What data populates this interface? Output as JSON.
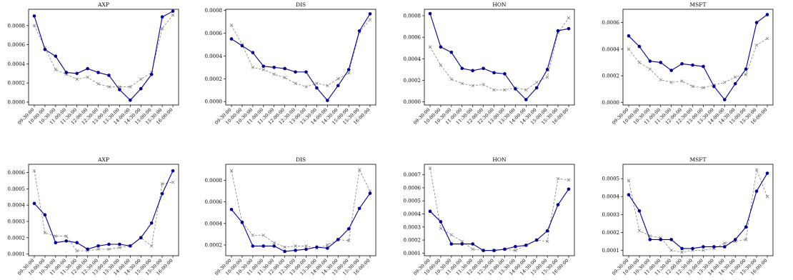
{
  "chart_data": [
    {
      "type": "line",
      "title": "AXP",
      "categories": [
        "09:30:00",
        "10:00:00",
        "10:30:00",
        "11:00:00",
        "11:30:00",
        "12:00:00",
        "12:30:00",
        "13:00:00",
        "13:30:00",
        "14:00:00",
        "14:30:00",
        "15:00:00",
        "15:30:00",
        "16:00:00"
      ],
      "ylim": [
        -3e-05,
        0.00097
      ],
      "yticks": [
        "0.0000",
        "0.0002",
        "0.0004",
        "0.0006",
        "0.0008"
      ],
      "ytick_values": [
        0,
        0.0002,
        0.0004,
        0.0006,
        0.0008
      ],
      "series": [
        {
          "style": "solid-circle",
          "color": "#00008b",
          "values": [
            0.0009,
            0.00055,
            0.00048,
            0.00031,
            0.0003,
            0.00035,
            0.00031,
            0.00028,
            0.00013,
            2e-05,
            0.00014,
            0.00029,
            0.00089,
            0.00095
          ]
        },
        {
          "style": "dashed-x",
          "color": "#808080",
          "values": [
            0.0008,
            0.00057,
            0.00034,
            0.00029,
            0.00024,
            0.00026,
            0.00019,
            0.00016,
            0.00016,
            0.00016,
            0.00024,
            0.00031,
            0.00077,
            0.00091
          ]
        }
      ]
    },
    {
      "type": "line",
      "title": "DIS",
      "categories": [
        "09:30:00",
        "10:00:00",
        "10:30:00",
        "11:00:00",
        "11:30:00",
        "12:00:00",
        "12:30:00",
        "13:00:00",
        "13:30:00",
        "14:00:00",
        "14:30:00",
        "15:00:00",
        "15:30:00",
        "16:00:00"
      ],
      "ylim": [
        -3e-05,
        0.00081
      ],
      "yticks": [
        "0.0000",
        "0.0002",
        "0.0004",
        "0.0006",
        "0.0008"
      ],
      "ytick_values": [
        0,
        0.0002,
        0.0004,
        0.0006,
        0.0008
      ],
      "series": [
        {
          "style": "solid-circle",
          "color": "#00008b",
          "values": [
            0.00055,
            0.00049,
            0.00043,
            0.00031,
            0.0003,
            0.00029,
            0.00026,
            0.00026,
            0.00012,
            1e-05,
            0.00014,
            0.00028,
            0.00062,
            0.00077
          ]
        },
        {
          "style": "dashed-x",
          "color": "#808080",
          "values": [
            0.00067,
            0.0005,
            0.0003,
            0.00028,
            0.00024,
            0.00021,
            0.00016,
            0.00013,
            0.00016,
            0.00014,
            0.0002,
            0.00025,
            0.00061,
            0.00072
          ]
        }
      ]
    },
    {
      "type": "line",
      "title": "HON",
      "categories": [
        "09:30:00",
        "10:00:00",
        "10:30:00",
        "11:00:00",
        "11:30:00",
        "12:00:00",
        "12:30:00",
        "13:00:00",
        "13:30:00",
        "14:00:00",
        "14:30:00",
        "15:00:00",
        "15:30:00",
        "16:00:00"
      ],
      "ylim": [
        -3e-05,
        0.00086
      ],
      "yticks": [
        "0.0000",
        "0.0002",
        "0.0004",
        "0.0006",
        "0.0008"
      ],
      "ytick_values": [
        0,
        0.0002,
        0.0004,
        0.0006,
        0.0008
      ],
      "series": [
        {
          "style": "solid-circle",
          "color": "#00008b",
          "values": [
            0.00082,
            0.00051,
            0.00046,
            0.00031,
            0.00029,
            0.00031,
            0.00027,
            0.00026,
            0.00012,
            2e-05,
            0.00013,
            0.0003,
            0.00066,
            0.00068
          ]
        },
        {
          "style": "dashed-x",
          "color": "#808080",
          "values": [
            0.00051,
            0.00034,
            0.00021,
            0.00017,
            0.00015,
            0.00016,
            0.00011,
            0.00011,
            0.00013,
            0.00011,
            0.00018,
            0.00023,
            0.00064,
            0.00078
          ]
        }
      ]
    },
    {
      "type": "line",
      "title": "MSFT",
      "categories": [
        "09:30:00",
        "10:00:00",
        "10:30:00",
        "11:00:00",
        "11:30:00",
        "12:00:00",
        "12:30:00",
        "13:00:00",
        "13:30:00",
        "14:00:00",
        "14:30:00",
        "15:00:00",
        "15:30:00",
        "16:00:00"
      ],
      "ylim": [
        -2e-05,
        0.0007
      ],
      "yticks": [
        "0.0000",
        "0.0002",
        "0.0004",
        "0.0006"
      ],
      "ytick_values": [
        0,
        0.0002,
        0.0004,
        0.0006
      ],
      "series": [
        {
          "style": "solid-circle",
          "color": "#00008b",
          "values": [
            0.0005,
            0.00042,
            0.00031,
            0.0003,
            0.00024,
            0.00029,
            0.00028,
            0.00027,
            0.00012,
            2e-05,
            0.00014,
            0.00025,
            0.0006,
            0.00066
          ]
        },
        {
          "style": "dashed-x",
          "color": "#808080",
          "values": [
            0.0004,
            0.0003,
            0.00025,
            0.00017,
            0.00015,
            0.00016,
            0.00012,
            0.00011,
            0.00013,
            0.00015,
            0.00019,
            0.00021,
            0.00043,
            0.00048
          ]
        }
      ]
    },
    {
      "type": "line",
      "title": "AXP",
      "categories": [
        "09:30:00",
        "10:00:00",
        "10:30:00",
        "11:00:00",
        "11:30:00",
        "12:00:00",
        "12:30:00",
        "13:00:00",
        "13:30:00",
        "14:00:00",
        "14:30:00",
        "15:00:00",
        "15:30:00",
        "16:00:00"
      ],
      "ylim": [
        9e-05,
        0.00065
      ],
      "yticks": [
        "0.0001",
        "0.0002",
        "0.0003",
        "0.0004",
        "0.0005",
        "0.0006"
      ],
      "ytick_values": [
        0.0001,
        0.0002,
        0.0003,
        0.0004,
        0.0005,
        0.0006
      ],
      "series": [
        {
          "style": "solid-circle",
          "color": "#00008b",
          "values": [
            0.00041,
            0.00034,
            0.00017,
            0.00018,
            0.00017,
            0.00013,
            0.00015,
            0.00016,
            0.00016,
            0.00015,
            0.0002,
            0.00029,
            0.00047,
            0.00061
          ]
        },
        {
          "style": "dashed-x",
          "color": "#808080",
          "values": [
            0.00061,
            0.00023,
            0.00021,
            0.00021,
            0.00012,
            0.00012,
            0.00013,
            0.00013,
            0.00014,
            0.00015,
            0.0002,
            0.00015,
            0.00053,
            0.00054
          ]
        }
      ]
    },
    {
      "type": "line",
      "title": "DIS",
      "categories": [
        "09:30:00",
        "10:00:00",
        "10:30:00",
        "11:00:00",
        "11:30:00",
        "12:00:00",
        "12:30:00",
        "13:00:00",
        "13:30:00",
        "14:00:00",
        "14:30:00",
        "15:00:00",
        "15:30:00",
        "16:00:00"
      ],
      "ylim": [
        0.0001,
        0.00095
      ],
      "yticks": [
        "0.0002",
        "0.0004",
        "0.0006",
        "0.0008"
      ],
      "ytick_values": [
        0.0002,
        0.0004,
        0.0006,
        0.0008
      ],
      "series": [
        {
          "style": "solid-circle",
          "color": "#00008b",
          "values": [
            0.00053,
            0.00041,
            0.00019,
            0.00019,
            0.00019,
            0.00014,
            0.00015,
            0.00016,
            0.00018,
            0.00017,
            0.00025,
            0.00035,
            0.00054,
            0.00068
          ]
        },
        {
          "style": "dashed-x",
          "color": "#808080",
          "values": [
            0.00089,
            0.00041,
            0.00029,
            0.00029,
            0.00022,
            0.00018,
            0.00019,
            0.00019,
            0.00017,
            0.0002,
            0.00025,
            0.00024,
            0.0009,
            0.0007
          ]
        }
      ]
    },
    {
      "type": "line",
      "title": "HON",
      "categories": [
        "09:30:00",
        "10:00:00",
        "10:30:00",
        "11:00:00",
        "11:30:00",
        "12:00:00",
        "12:30:00",
        "13:00:00",
        "13:30:00",
        "14:00:00",
        "14:30:00",
        "15:00:00",
        "15:30:00",
        "16:00:00"
      ],
      "ylim": [
        8e-05,
        0.00078
      ],
      "yticks": [
        "0.0001",
        "0.0002",
        "0.0003",
        "0.0004",
        "0.0005",
        "0.0006",
        "0.0007"
      ],
      "ytick_values": [
        0.0001,
        0.0002,
        0.0003,
        0.0004,
        0.0005,
        0.0006,
        0.0007
      ],
      "series": [
        {
          "style": "solid-circle",
          "color": "#00008b",
          "values": [
            0.00042,
            0.00034,
            0.00017,
            0.00017,
            0.00017,
            0.00012,
            0.00012,
            0.00013,
            0.00015,
            0.00016,
            0.0002,
            0.00027,
            0.00047,
            0.00059
          ]
        },
        {
          "style": "dashed-x",
          "color": "#808080",
          "values": [
            0.00075,
            0.00029,
            0.00024,
            0.00019,
            0.00013,
            0.00012,
            0.00012,
            0.00013,
            0.00012,
            0.00016,
            0.0002,
            0.00019,
            0.00067,
            0.00066
          ]
        }
      ]
    },
    {
      "type": "line",
      "title": "MSFT",
      "categories": [
        "09:30:00",
        "10:00:00",
        "10:30:00",
        "11:00:00",
        "11:30:00",
        "12:00:00",
        "12:30:00",
        "13:00:00",
        "13:30:00",
        "14:00:00",
        "14:30:00",
        "15:00:00",
        "15:30:00",
        "16:00:00"
      ],
      "ylim": [
        7e-05,
        0.00058
      ],
      "yticks": [
        "0.0001",
        "0.0002",
        "0.0003",
        "0.0004",
        "0.0005"
      ],
      "ytick_values": [
        0.0001,
        0.0002,
        0.0003,
        0.0004,
        0.0005
      ],
      "series": [
        {
          "style": "solid-circle",
          "color": "#00008b",
          "values": [
            0.00041,
            0.00032,
            0.00016,
            0.00016,
            0.00016,
            0.00011,
            0.00011,
            0.00012,
            0.00012,
            0.00012,
            0.00016,
            0.00023,
            0.00043,
            0.00053
          ]
        },
        {
          "style": "dashed-x",
          "color": "#808080",
          "values": [
            0.00049,
            0.00021,
            0.00018,
            0.00017,
            0.0001,
            9e-05,
            0.0001,
            0.0001,
            0.00011,
            0.00014,
            0.00015,
            0.00016,
            0.00055,
            0.0004
          ]
        }
      ]
    }
  ]
}
